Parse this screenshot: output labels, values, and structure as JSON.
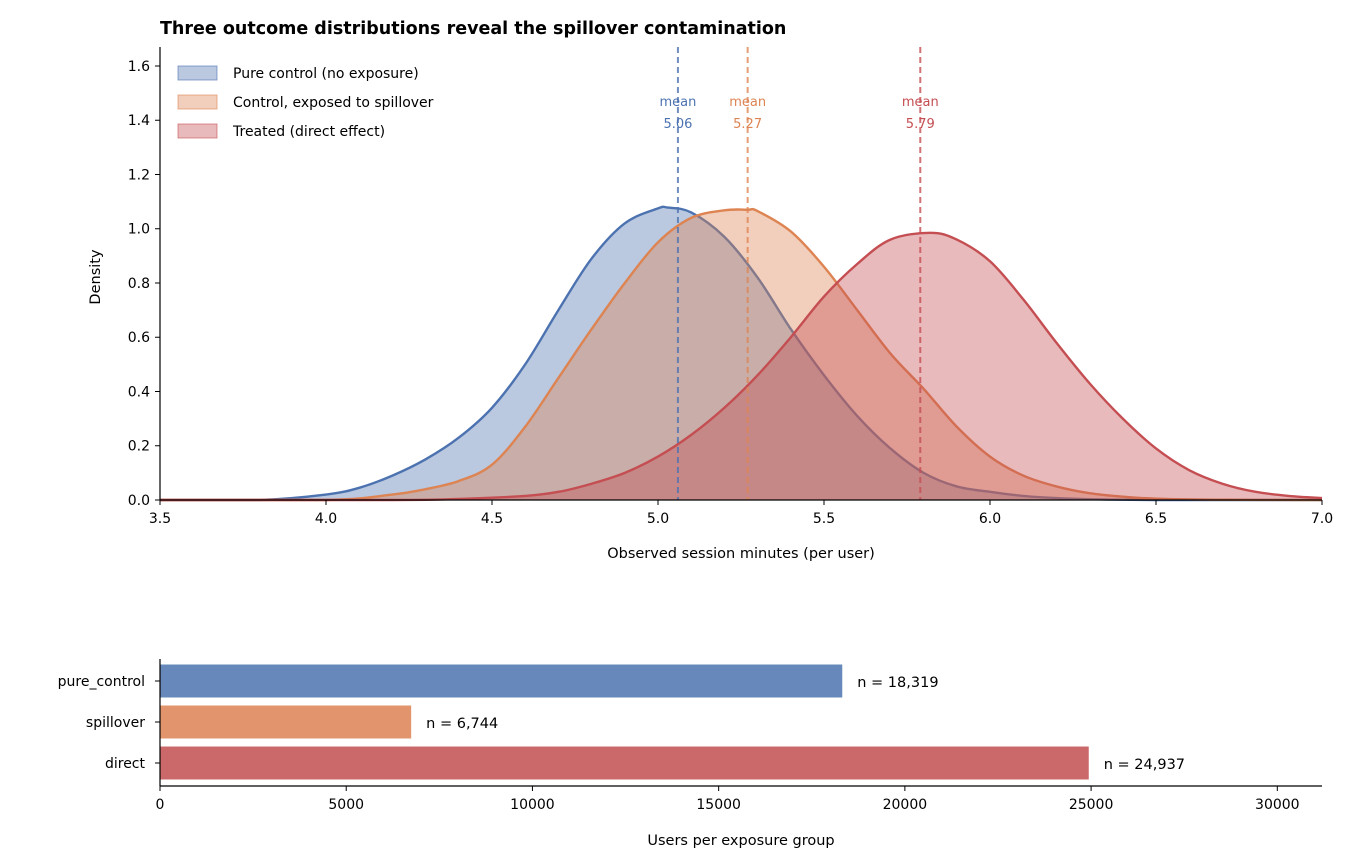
{
  "chart_data": [
    {
      "type": "area",
      "title": "Three outcome distributions reveal the spillover contamination",
      "xlabel": "Observed session minutes (per user)",
      "ylabel": "Density",
      "xlim": [
        3.5,
        7.0
      ],
      "ylim": [
        0,
        1.67
      ],
      "xticks": [
        "3.5",
        "4.0",
        "4.5",
        "5.0",
        "5.5",
        "6.0",
        "6.5",
        "7.0"
      ],
      "yticks": [
        "0.0",
        "0.2",
        "0.4",
        "0.6",
        "0.8",
        "1.0",
        "1.2",
        "1.4",
        "1.6"
      ],
      "grid": false,
      "legend_position": "top-left",
      "series": [
        {
          "name": "Pure control (no exposure)",
          "color": "#4c72b0",
          "mean": 5.06,
          "mean_prefix": "mean",
          "mean_label": "5.06",
          "x": [
            3.5,
            3.8,
            4.0,
            4.1,
            4.2,
            4.3,
            4.4,
            4.5,
            4.6,
            4.7,
            4.8,
            4.9,
            5.0,
            5.03,
            5.1,
            5.2,
            5.3,
            5.4,
            5.5,
            5.6,
            5.7,
            5.8,
            5.9,
            6.0,
            6.1,
            6.2,
            6.3,
            6.5,
            7.0
          ],
          "y": [
            0.0,
            0.0,
            0.02,
            0.045,
            0.09,
            0.15,
            0.23,
            0.34,
            0.5,
            0.7,
            0.89,
            1.02,
            1.075,
            1.078,
            1.06,
            0.97,
            0.82,
            0.63,
            0.46,
            0.31,
            0.19,
            0.1,
            0.05,
            0.03,
            0.015,
            0.007,
            0.003,
            0.0,
            0.0
          ]
        },
        {
          "name": "Control, exposed to spillover",
          "color": "#dd8452",
          "mean": 5.27,
          "mean_prefix": "mean",
          "mean_label": "5.27",
          "x": [
            3.5,
            4.0,
            4.2,
            4.3,
            4.4,
            4.5,
            4.6,
            4.7,
            4.8,
            4.9,
            5.0,
            5.1,
            5.2,
            5.27,
            5.3,
            5.4,
            5.5,
            5.6,
            5.7,
            5.8,
            5.9,
            6.0,
            6.1,
            6.2,
            6.3,
            6.4,
            6.5,
            6.7,
            7.0
          ],
          "y": [
            0.0,
            0.0,
            0.02,
            0.04,
            0.07,
            0.13,
            0.27,
            0.45,
            0.63,
            0.8,
            0.95,
            1.04,
            1.068,
            1.07,
            1.065,
            0.99,
            0.86,
            0.7,
            0.54,
            0.41,
            0.27,
            0.16,
            0.09,
            0.05,
            0.025,
            0.012,
            0.005,
            0.001,
            0.0
          ]
        },
        {
          "name": "Treated (direct effect)",
          "color": "#c44e52",
          "mean": 5.79,
          "mean_prefix": "mean",
          "mean_label": "5.79",
          "x": [
            3.5,
            4.2,
            4.4,
            4.6,
            4.7,
            4.8,
            4.9,
            5.0,
            5.1,
            5.2,
            5.3,
            5.4,
            5.5,
            5.6,
            5.7,
            5.82,
            5.9,
            6.0,
            6.1,
            6.2,
            6.3,
            6.4,
            6.5,
            6.6,
            6.7,
            6.8,
            6.9,
            7.0
          ],
          "y": [
            0.0,
            0.0,
            0.004,
            0.015,
            0.03,
            0.06,
            0.1,
            0.16,
            0.24,
            0.34,
            0.46,
            0.6,
            0.75,
            0.87,
            0.96,
            0.985,
            0.96,
            0.88,
            0.74,
            0.58,
            0.43,
            0.3,
            0.19,
            0.11,
            0.06,
            0.03,
            0.015,
            0.007
          ]
        }
      ]
    },
    {
      "type": "bar",
      "orientation": "horizontal",
      "xlabel": "Users per exposure group",
      "xlim": [
        0,
        31200
      ],
      "xticks": [
        "0",
        "5000",
        "10000",
        "15000",
        "20000",
        "25000",
        "30000"
      ],
      "grid": false,
      "categories": [
        "pure_control",
        "spillover",
        "direct"
      ],
      "values": [
        18319,
        6744,
        24937
      ],
      "data_labels": [
        "n = 18,319",
        "n = 6,744",
        "n = 24,937"
      ],
      "colors": [
        "#6788bb",
        "#e2956c",
        "#cb686a"
      ]
    }
  ]
}
